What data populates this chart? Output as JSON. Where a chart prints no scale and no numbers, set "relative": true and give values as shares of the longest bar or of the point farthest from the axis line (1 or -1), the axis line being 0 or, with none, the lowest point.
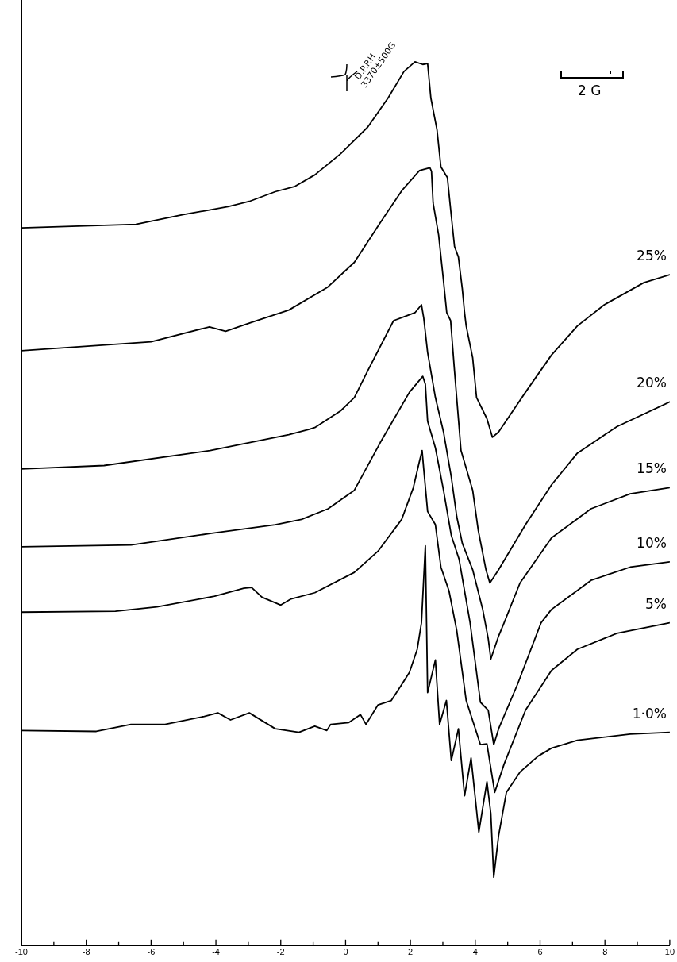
{
  "chart_data": {
    "type": "line",
    "relative": true,
    "legend": false,
    "grid": false,
    "marker": "none",
    "line_style": "solid",
    "xlim": [
      -10,
      10
    ],
    "xticks": [
      -10,
      {
        "value": -9,
        "label": null
      },
      -8,
      {
        "value": -7,
        "label": null
      },
      -6,
      {
        "value": -5,
        "label": null
      },
      -4,
      {
        "value": -3,
        "label": null
      },
      -2,
      {
        "value": -1,
        "label": null
      },
      0,
      {
        "value": 1,
        "label": null
      },
      2,
      {
        "value": 3,
        "label": null
      },
      4,
      {
        "value": 5,
        "label": null
      },
      6,
      {
        "value": 7,
        "label": null
      },
      8,
      {
        "value": 9,
        "label": null
      },
      10
    ],
    "annotations": [
      "D.P.P.H",
      "3370±500G",
      "2 G"
    ],
    "series": [
      {
        "name": "25%",
        "color": "#000000",
        "x": [
          -10,
          -8.25,
          -6.47,
          -5.01,
          -3.63,
          -2.97,
          -2.17,
          -1.56,
          -0.95,
          -0.15,
          0.68,
          1.31,
          1.8,
          2.14,
          2.38,
          2.53,
          2.63,
          2.82,
          2.94,
          3.14,
          3.24,
          3.36,
          3.48,
          3.6,
          3.67,
          3.72,
          3.92,
          4.04,
          4.36,
          4.53,
          4.72,
          5.55,
          6.35,
          7.15,
          7.98,
          9.2,
          10
        ],
        "values": [
          0.812,
          0.814,
          0.816,
          0.827,
          0.836,
          0.842,
          0.853,
          0.859,
          0.872,
          0.896,
          0.926,
          0.959,
          0.989,
          1.0,
          0.997,
          0.998,
          0.959,
          0.923,
          0.881,
          0.869,
          0.833,
          0.791,
          0.779,
          0.743,
          0.716,
          0.701,
          0.665,
          0.62,
          0.596,
          0.575,
          0.581,
          0.626,
          0.668,
          0.701,
          0.725,
          0.75,
          0.759
        ]
      },
      {
        "name": "20%",
        "color": "#000000",
        "x": [
          -10,
          -6.0,
          -4.2,
          -3.7,
          -2.9,
          -1.75,
          -0.55,
          0.27,
          1.07,
          1.73,
          2.28,
          2.6,
          2.65,
          2.7,
          2.87,
          3.0,
          3.12,
          3.24,
          3.36,
          3.56,
          3.92,
          4.09,
          4.33,
          4.45,
          4.72,
          5.55,
          6.35,
          7.15,
          8.37,
          10
        ],
        "values": [
          0.673,
          0.683,
          0.7,
          0.695,
          0.705,
          0.719,
          0.745,
          0.773,
          0.818,
          0.854,
          0.877,
          0.88,
          0.876,
          0.84,
          0.804,
          0.759,
          0.716,
          0.707,
          0.65,
          0.56,
          0.515,
          0.47,
          0.425,
          0.41,
          0.425,
          0.476,
          0.521,
          0.557,
          0.587,
          0.615
        ]
      },
      {
        "name": "15%",
        "color": "#000000",
        "x": [
          -10,
          -7.45,
          -4.18,
          -1.75,
          -1.12,
          -0.95,
          -0.15,
          0.27,
          0.68,
          1.48,
          2.14,
          2.34,
          2.41,
          2.53,
          2.77,
          3.02,
          3.26,
          3.43,
          3.6,
          3.92,
          4.23,
          4.4,
          4.48,
          4.72,
          4.89,
          5.38,
          6.35,
          7.57,
          8.78,
          10
        ],
        "values": [
          0.539,
          0.543,
          0.56,
          0.578,
          0.584,
          0.586,
          0.605,
          0.62,
          0.65,
          0.707,
          0.716,
          0.725,
          0.71,
          0.671,
          0.62,
          0.581,
          0.53,
          0.485,
          0.455,
          0.425,
          0.38,
          0.347,
          0.324,
          0.35,
          0.365,
          0.41,
          0.461,
          0.494,
          0.511,
          0.518
        ]
      },
      {
        "name": "10%",
        "color": "#000000",
        "x": [
          -10,
          -6.62,
          -4.18,
          -2.17,
          -1.36,
          -0.54,
          0.27,
          1.07,
          1.97,
          2.38,
          2.46,
          2.53,
          2.77,
          3.02,
          3.26,
          3.5,
          3.84,
          4.16,
          4.4,
          4.57,
          4.72,
          5.3,
          6.03,
          6.35,
          7.57,
          8.78,
          10
        ],
        "values": [
          0.451,
          0.453,
          0.466,
          0.476,
          0.482,
          0.494,
          0.515,
          0.569,
          0.626,
          0.644,
          0.635,
          0.593,
          0.563,
          0.515,
          0.464,
          0.437,
          0.365,
          0.275,
          0.266,
          0.227,
          0.245,
          0.295,
          0.365,
          0.38,
          0.413,
          0.428,
          0.434
        ]
      },
      {
        "name": "5%",
        "color": "#000000",
        "x": [
          -10,
          -7.1,
          -5.82,
          -4.04,
          -3.14,
          -2.9,
          -2.58,
          -2.0,
          -1.68,
          -0.95,
          0.27,
          1.0,
          1.73,
          2.09,
          2.26,
          2.36,
          2.41,
          2.53,
          2.77,
          2.94,
          3.19,
          3.43,
          3.72,
          4.16,
          4.36,
          4.6,
          4.89,
          5.55,
          6.35,
          7.15,
          8.37,
          10
        ],
        "values": [
          0.377,
          0.378,
          0.383,
          0.395,
          0.404,
          0.405,
          0.394,
          0.385,
          0.392,
          0.399,
          0.422,
          0.446,
          0.482,
          0.518,
          0.545,
          0.56,
          0.539,
          0.491,
          0.476,
          0.428,
          0.401,
          0.356,
          0.277,
          0.227,
          0.228,
          0.173,
          0.205,
          0.266,
          0.311,
          0.335,
          0.353,
          0.365
        ]
      },
      {
        "name": "1·0%",
        "color": "#000000",
        "x": [
          -10,
          -7.69,
          -6.62,
          -5.57,
          -4.36,
          -3.94,
          -3.55,
          -2.97,
          -2.17,
          -1.44,
          -0.95,
          -0.58,
          -0.46,
          0.1,
          0.46,
          0.63,
          1.0,
          1.41,
          1.73,
          1.97,
          2.21,
          2.34,
          2.46,
          2.53,
          2.77,
          2.9,
          3.11,
          3.26,
          3.48,
          3.67,
          3.87,
          4.11,
          4.36,
          4.48,
          4.57,
          4.72,
          4.96,
          5.38,
          5.94,
          6.35,
          7.15,
          8.78,
          10
        ],
        "values": [
          0.243,
          0.242,
          0.25,
          0.25,
          0.259,
          0.263,
          0.255,
          0.263,
          0.245,
          0.241,
          0.248,
          0.243,
          0.25,
          0.252,
          0.261,
          0.25,
          0.272,
          0.277,
          0.295,
          0.309,
          0.335,
          0.365,
          0.452,
          0.286,
          0.323,
          0.25,
          0.277,
          0.209,
          0.245,
          0.169,
          0.212,
          0.128,
          0.185,
          0.149,
          0.077,
          0.124,
          0.173,
          0.196,
          0.214,
          0.223,
          0.232,
          0.239,
          0.241
        ]
      }
    ]
  }
}
